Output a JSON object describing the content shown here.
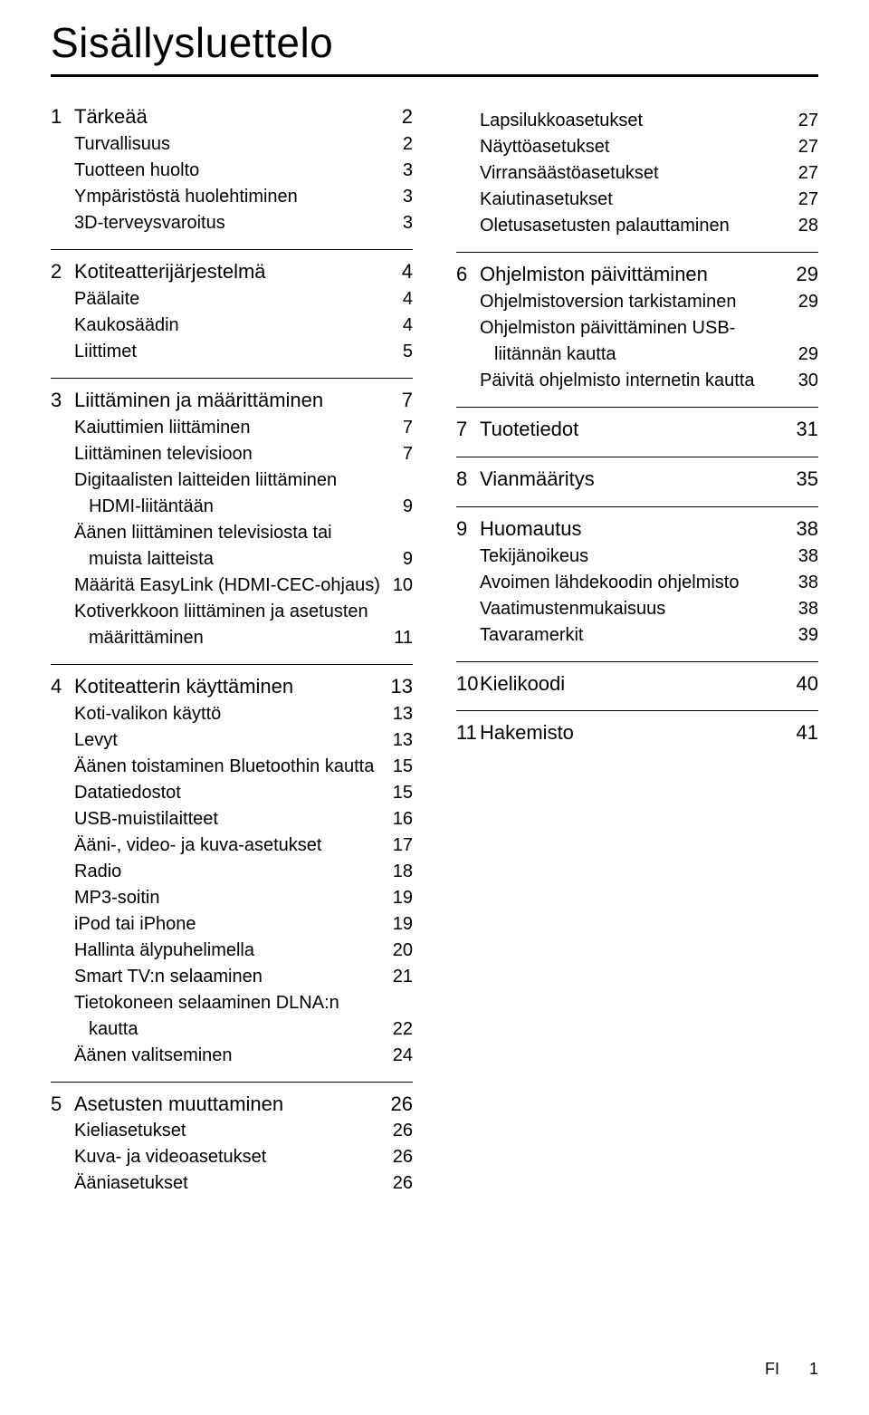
{
  "title": "Sisällysluettelo",
  "footer": {
    "lang": "FI",
    "page": "1"
  },
  "left": {
    "sections": [
      {
        "num": "1",
        "title": "Tärkeää",
        "page": "2",
        "items": [
          {
            "label": "Turvallisuus",
            "page": "2"
          },
          {
            "label": "Tuotteen huolto",
            "page": "3"
          },
          {
            "label": "Ympäristöstä huolehtiminen",
            "page": "3"
          },
          {
            "label": "3D-terveysvaroitus",
            "page": "3"
          }
        ]
      },
      {
        "num": "2",
        "title": "Kotiteatterijärjestelmä",
        "page": "4",
        "items": [
          {
            "label": "Päälaite",
            "page": "4"
          },
          {
            "label": "Kaukosäädin",
            "page": "4"
          },
          {
            "label": "Liittimet",
            "page": "5"
          }
        ]
      },
      {
        "num": "3",
        "title": "Liittäminen ja määrittäminen",
        "page": "7",
        "items": [
          {
            "label": "Kaiuttimien liittäminen",
            "page": "7"
          },
          {
            "label": "Liittäminen televisioon",
            "page": "7"
          },
          {
            "label": "Digitaalisten laitteiden liittäminen",
            "page": ""
          },
          {
            "label": "HDMI-liitäntään",
            "page": "9",
            "cont": true
          },
          {
            "label": "Äänen liittäminen televisiosta tai",
            "page": ""
          },
          {
            "label": "muista laitteista",
            "page": "9",
            "cont": true
          },
          {
            "label": "Määritä EasyLink (HDMI-CEC-ohjaus)",
            "page": "10"
          },
          {
            "label": "Kotiverkkoon liittäminen ja asetusten",
            "page": ""
          },
          {
            "label": "määrittäminen",
            "page": "11",
            "cont": true
          }
        ]
      },
      {
        "num": "4",
        "title": "Kotiteatterin käyttäminen",
        "page": "13",
        "items": [
          {
            "label": "Koti-valikon käyttö",
            "page": "13"
          },
          {
            "label": "Levyt",
            "page": "13"
          },
          {
            "label": "Äänen toistaminen Bluetoothin kautta",
            "page": "15"
          },
          {
            "label": "Datatiedostot",
            "page": "15"
          },
          {
            "label": "USB-muistilaitteet",
            "page": "16"
          },
          {
            "label": "Ääni-, video- ja kuva-asetukset",
            "page": "17"
          },
          {
            "label": "Radio",
            "page": "18"
          },
          {
            "label": "MP3-soitin",
            "page": "19"
          },
          {
            "label": "iPod tai iPhone",
            "page": "19"
          },
          {
            "label": "Hallinta älypuhelimella",
            "page": "20"
          },
          {
            "label": "Smart TV:n selaaminen",
            "page": "21"
          },
          {
            "label": "Tietokoneen selaaminen DLNA:n",
            "page": ""
          },
          {
            "label": "kautta",
            "page": "22",
            "cont": true
          },
          {
            "label": "Äänen valitseminen",
            "page": "24"
          }
        ]
      },
      {
        "num": "5",
        "title": "Asetusten muuttaminen",
        "page": "26",
        "items": [
          {
            "label": "Kieliasetukset",
            "page": "26"
          },
          {
            "label": "Kuva- ja videoasetukset",
            "page": "26"
          },
          {
            "label": "Ääniasetukset",
            "page": "26"
          }
        ]
      }
    ]
  },
  "right": {
    "top_items": [
      {
        "label": "Lapsilukkoasetukset",
        "page": "27"
      },
      {
        "label": "Näyttöasetukset",
        "page": "27"
      },
      {
        "label": "Virransäästöasetukset",
        "page": "27"
      },
      {
        "label": "Kaiutinasetukset",
        "page": "27"
      },
      {
        "label": "Oletusasetusten palauttaminen",
        "page": "28"
      }
    ],
    "sections": [
      {
        "num": "6",
        "title": "Ohjelmiston päivittäminen",
        "page": "29",
        "items": [
          {
            "label": "Ohjelmistoversion tarkistaminen",
            "page": "29"
          },
          {
            "label": "Ohjelmiston päivittäminen USB-",
            "page": ""
          },
          {
            "label": "liitännän kautta",
            "page": "29",
            "cont": true
          },
          {
            "label": "Päivitä ohjelmisto internetin kautta",
            "page": "30"
          }
        ]
      },
      {
        "num": "7",
        "title": "Tuotetiedot",
        "page": "31",
        "items": []
      },
      {
        "num": "8",
        "title": "Vianmääritys",
        "page": "35",
        "items": []
      },
      {
        "num": "9",
        "title": "Huomautus",
        "page": "38",
        "items": [
          {
            "label": "Tekijänoikeus",
            "page": "38"
          },
          {
            "label": "Avoimen lähdekoodin ohjelmisto",
            "page": "38"
          },
          {
            "label": "Vaatimustenmukaisuus",
            "page": "38"
          },
          {
            "label": "Tavaramerkit",
            "page": "39"
          }
        ]
      },
      {
        "num": "10",
        "title": "Kielikoodi",
        "page": "40",
        "items": []
      },
      {
        "num": "11",
        "title": "Hakemisto",
        "page": "41",
        "items": []
      }
    ]
  }
}
